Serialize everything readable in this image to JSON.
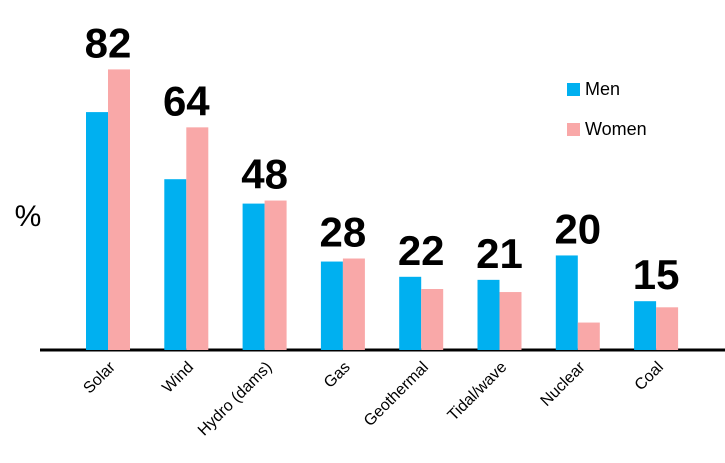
{
  "chart_data": {
    "type": "bar",
    "y_label": "%",
    "categories": [
      "Solar",
      "Wind",
      "Hydro (dams)",
      "Gas",
      "Geothermal",
      "Tidal/wave",
      "Nuclear",
      "Coal"
    ],
    "totals": [
      82,
      64,
      48,
      28,
      22,
      21,
      20,
      15
    ],
    "series": [
      {
        "name": "Men",
        "color": "#00b0f0",
        "values": [
          78,
          56,
          48,
          29,
          24,
          23,
          31,
          16
        ]
      },
      {
        "name": "Women",
        "color": "#f9a8a8",
        "values": [
          92,
          73,
          49,
          30,
          20,
          19,
          9,
          14
        ]
      }
    ],
    "ylim": [
      0,
      100
    ],
    "legend": "upper right"
  }
}
